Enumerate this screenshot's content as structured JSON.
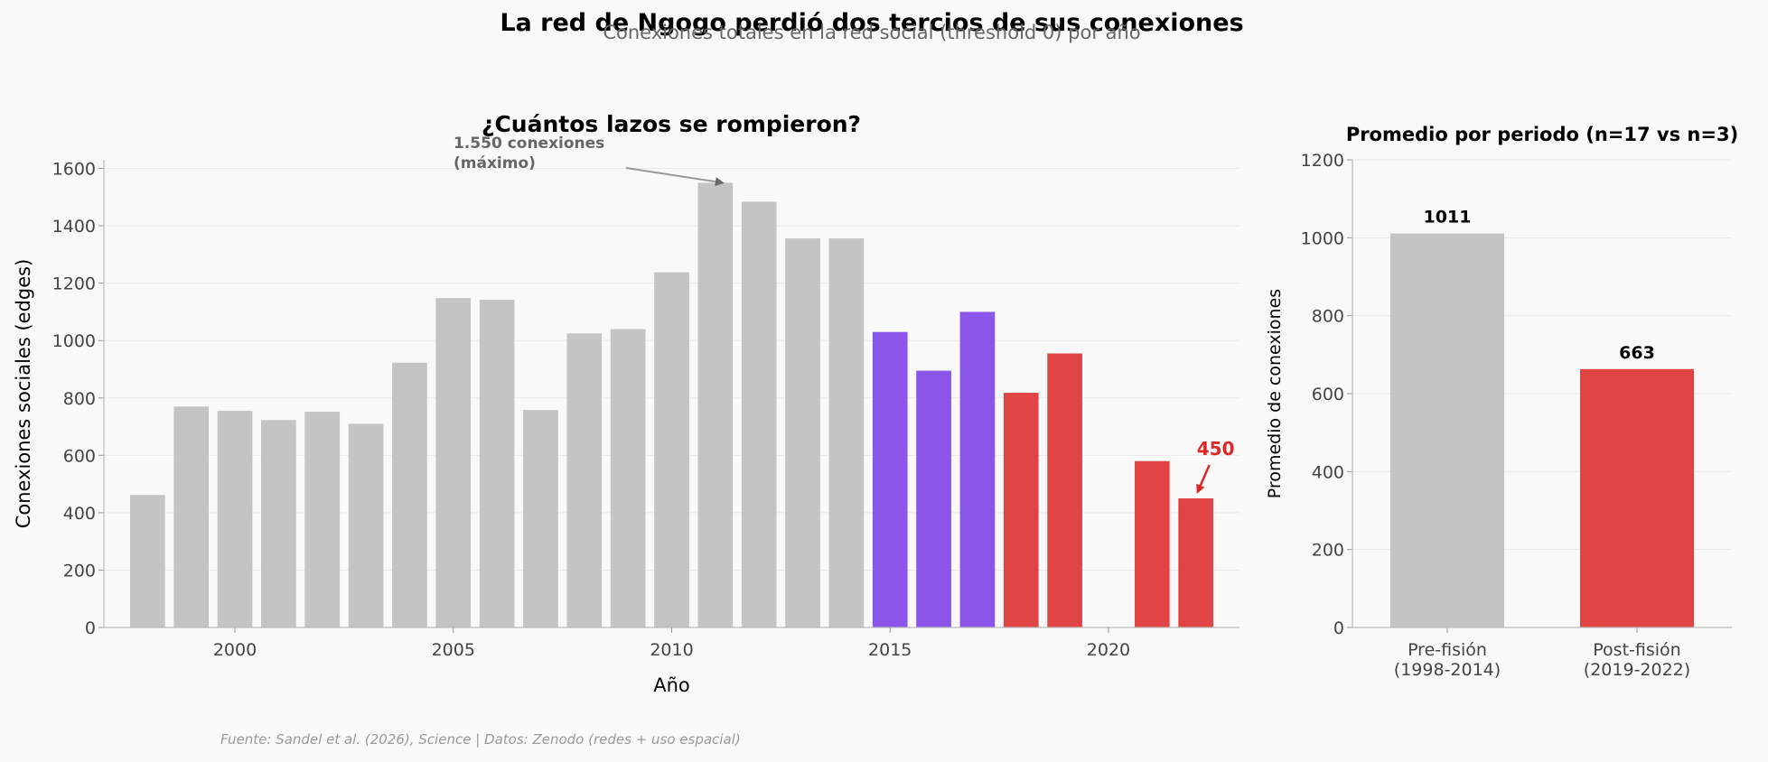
{
  "title": "La red de Ngogo perdió dos tercios de sus conexiones",
  "subtitle": "Conexiones totales en la red social (threshold 0) por año",
  "source": "Fuente: Sandel et al. (2026), Science | Datos: Zenodo (redes + uso espacial)",
  "colors": {
    "pre": "#c4c4c4",
    "transition": "#8b55ea",
    "post": "#e04444",
    "annotation_gray": "#666666",
    "annotation_red": "#dc2828"
  },
  "chart_data": [
    {
      "type": "bar",
      "title": "¿Cuántos lazos se rompieron?",
      "xlabel": "Año",
      "ylabel": "Conexiones sociales (edges)",
      "xlim": [
        1997,
        2023
      ],
      "ylim": [
        0,
        1630
      ],
      "xticks": [
        2000,
        2005,
        2010,
        2015,
        2020
      ],
      "yticks": [
        0,
        200,
        400,
        600,
        800,
        1000,
        1200,
        1400,
        1600
      ],
      "grid": true,
      "x": [
        1998,
        1999,
        2000,
        2001,
        2002,
        2003,
        2004,
        2005,
        2006,
        2007,
        2008,
        2009,
        2010,
        2011,
        2012,
        2013,
        2014,
        2015,
        2016,
        2017,
        2018,
        2019,
        2021,
        2022
      ],
      "values": [
        462,
        770,
        755,
        723,
        752,
        710,
        923,
        1148,
        1142,
        758,
        1025,
        1040,
        1238,
        1550,
        1484,
        1356,
        1356,
        1030,
        895,
        1100,
        818,
        955,
        580,
        450
      ],
      "groups": [
        "pre",
        "pre",
        "pre",
        "pre",
        "pre",
        "pre",
        "pre",
        "pre",
        "pre",
        "pre",
        "pre",
        "pre",
        "pre",
        "pre",
        "pre",
        "pre",
        "pre",
        "transition",
        "transition",
        "transition",
        "post",
        "post",
        "post",
        "post"
      ],
      "annotations": [
        {
          "text_lines": [
            "1.550 conexiones",
            "(máximo)"
          ],
          "target_x": 2011,
          "target_y": 1550,
          "style": "gray"
        },
        {
          "text_lines": [
            "450"
          ],
          "target_x": 2022,
          "target_y": 450,
          "style": "red"
        }
      ]
    },
    {
      "type": "bar",
      "title": "Promedio por periodo (n=17 vs n=3)",
      "ylabel": "Promedio de conexiones",
      "ylim": [
        0,
        1200
      ],
      "yticks": [
        0,
        200,
        400,
        600,
        800,
        1000,
        1200
      ],
      "grid": true,
      "categories": [
        [
          "Pre-fisión",
          "(1998-2014)"
        ],
        [
          "Post-fisión",
          "(2019-2022)"
        ]
      ],
      "values": [
        1011,
        663
      ],
      "value_labels": [
        "1011",
        "663"
      ],
      "groups": [
        "pre",
        "post"
      ]
    }
  ]
}
